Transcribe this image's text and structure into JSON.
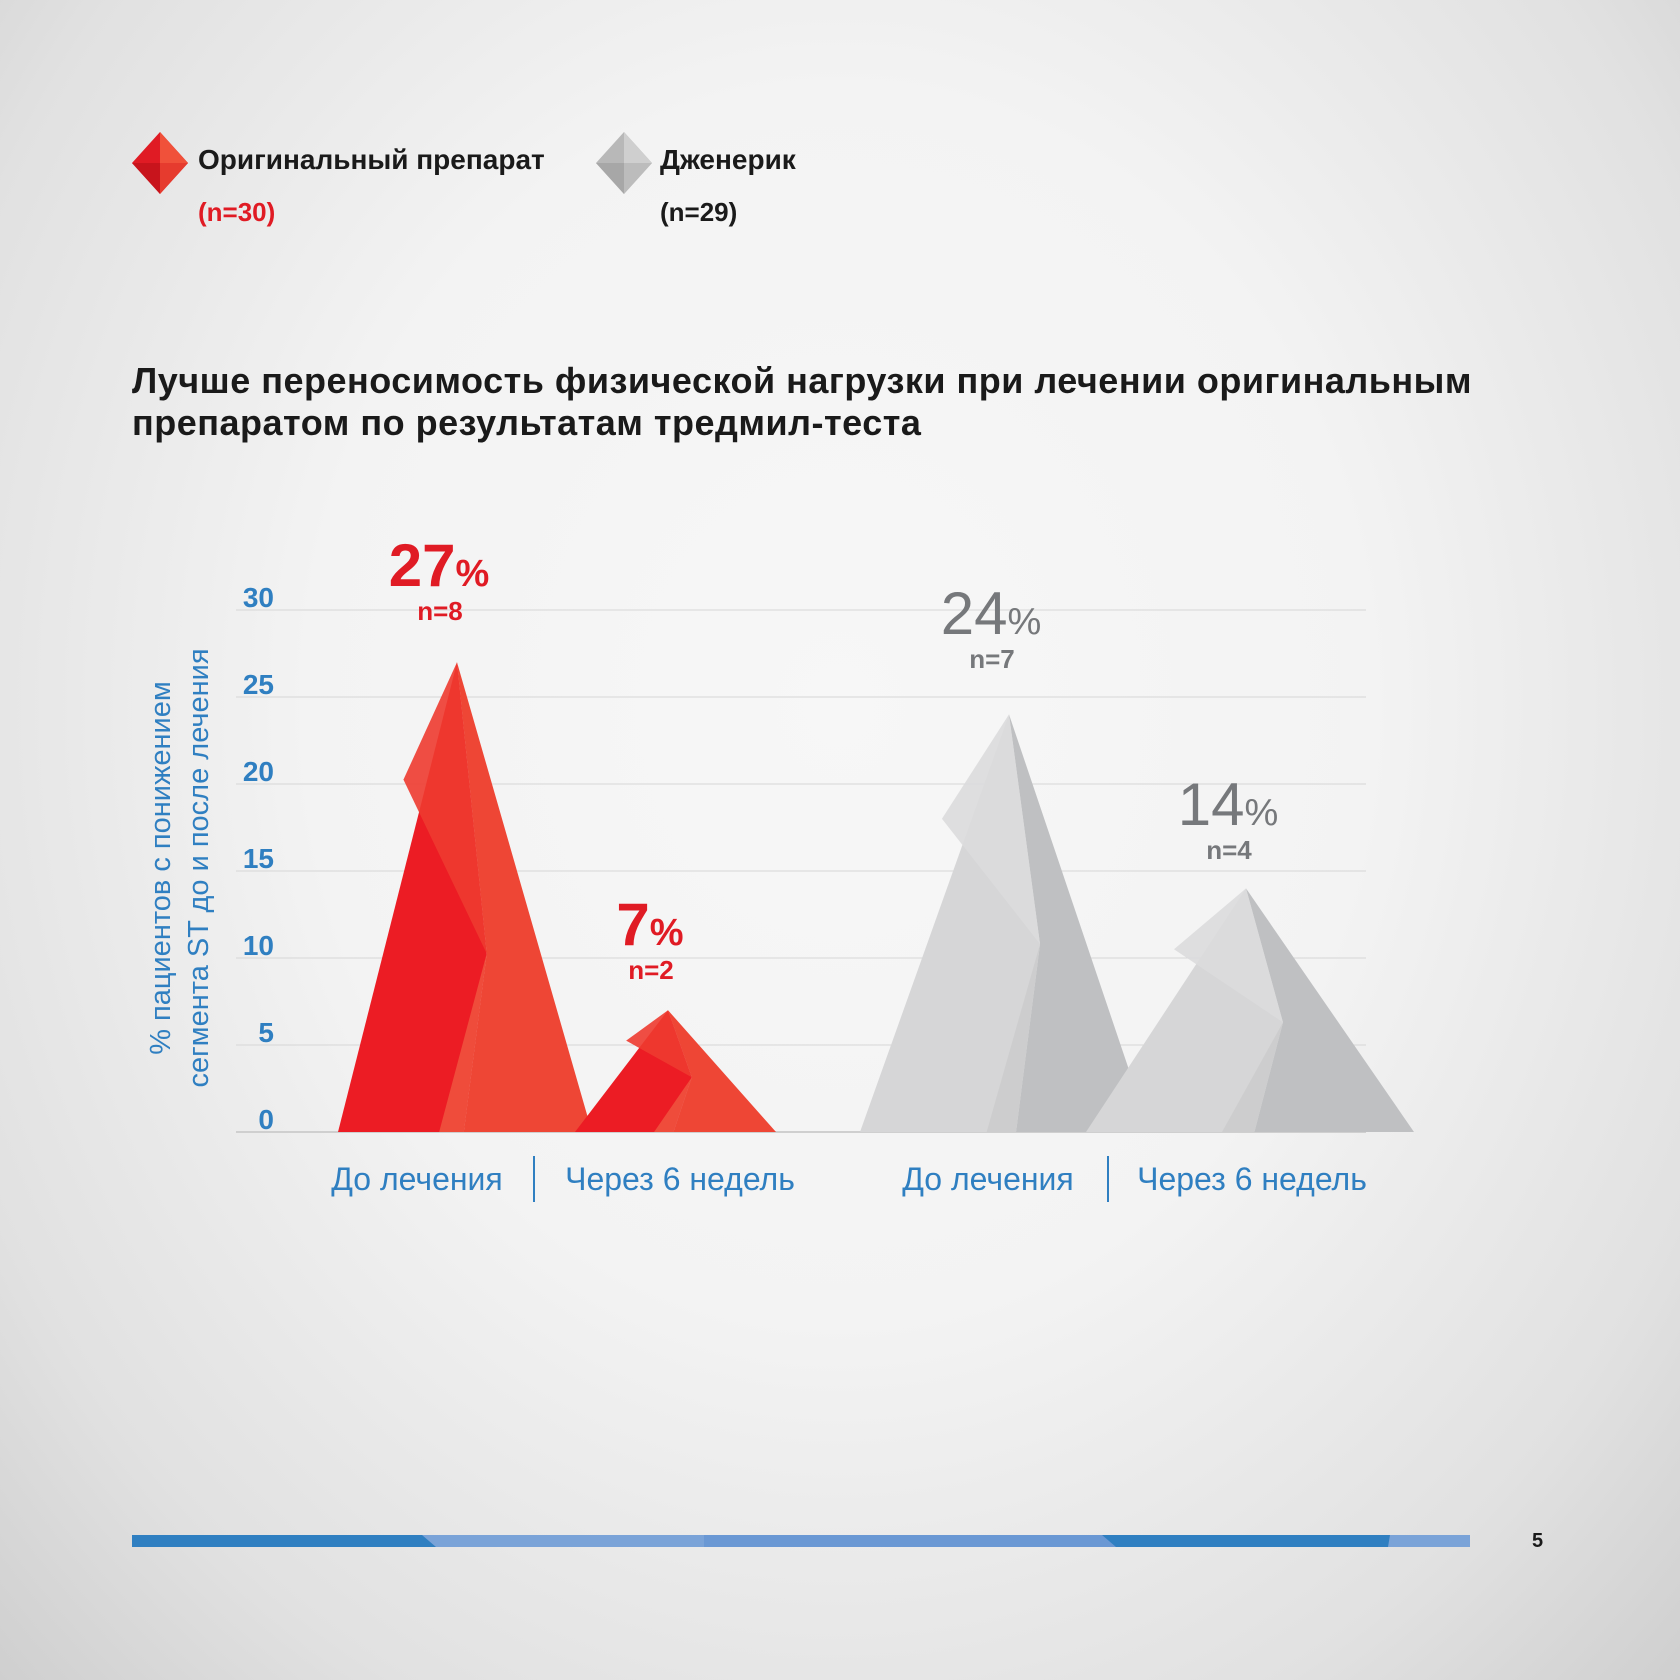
{
  "legend": {
    "original": {
      "label": "Оригинальный препарат",
      "n": "(n=30)",
      "color": "#e01b24"
    },
    "generic": {
      "label": "Дженерик",
      "n": "(n=29)",
      "color": "#a9a9a9"
    }
  },
  "title_lines": [
    "Лучше переносимость физической нагрузки при лечении оригинальным",
    "препаратом по результатам тредмил-теста"
  ],
  "chart_data": {
    "type": "area",
    "ylabel_lines": [
      "% пациентов с понижением",
      "сегмента ST до и после лечения"
    ],
    "ylim": [
      0,
      30
    ],
    "yticks": [
      0,
      5,
      10,
      15,
      20,
      25,
      30
    ],
    "grid": true,
    "groups": [
      {
        "series": "original",
        "points": [
          {
            "category": "До лечения",
            "value": 27,
            "value_label": "27",
            "unit": "%",
            "n_label": "n=8"
          },
          {
            "category": "Через 6 недель",
            "value": 7,
            "value_label": "7",
            "unit": "%",
            "n_label": "n=2"
          }
        ]
      },
      {
        "series": "generic",
        "points": [
          {
            "category": "До лечения",
            "value": 24,
            "value_label": "24",
            "unit": "%",
            "n_label": "n=7"
          },
          {
            "category": "Через 6 недель",
            "value": 14,
            "value_label": "14",
            "unit": "%",
            "n_label": "n=4"
          }
        ]
      }
    ],
    "colors": {
      "axis_text": "#2f7fc1",
      "original_label": "#e01b24",
      "generic_label": "#76787b",
      "grid": "#d6d6d6"
    }
  },
  "page": {
    "number": "5"
  }
}
